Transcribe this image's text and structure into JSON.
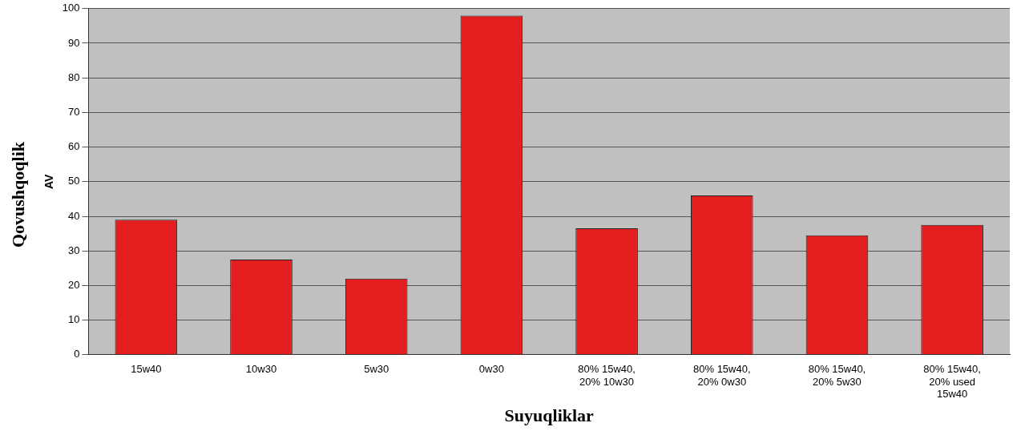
{
  "chart_data": {
    "type": "bar",
    "xlabel": "Suyuqliklar",
    "ylabel": "AV",
    "annotations": [
      "Qovushqoqlik"
    ],
    "categories": [
      "15w40",
      "10w30",
      "5w30",
      "0w30",
      "80% 15w40, 20% 10w30",
      "80% 15w40, 20% 0w30",
      "80% 15w40, 20% 5w30",
      "80% 15w40, 20% used 15w40"
    ],
    "values": [
      39,
      27.5,
      22,
      98,
      36.5,
      46,
      34.5,
      37.5
    ],
    "color": "#e41e1e",
    "ylim": [
      0,
      100
    ],
    "yticks": [
      0,
      10,
      20,
      30,
      40,
      50,
      60,
      70,
      80,
      90,
      100
    ],
    "grid": "y",
    "legend": false
  }
}
